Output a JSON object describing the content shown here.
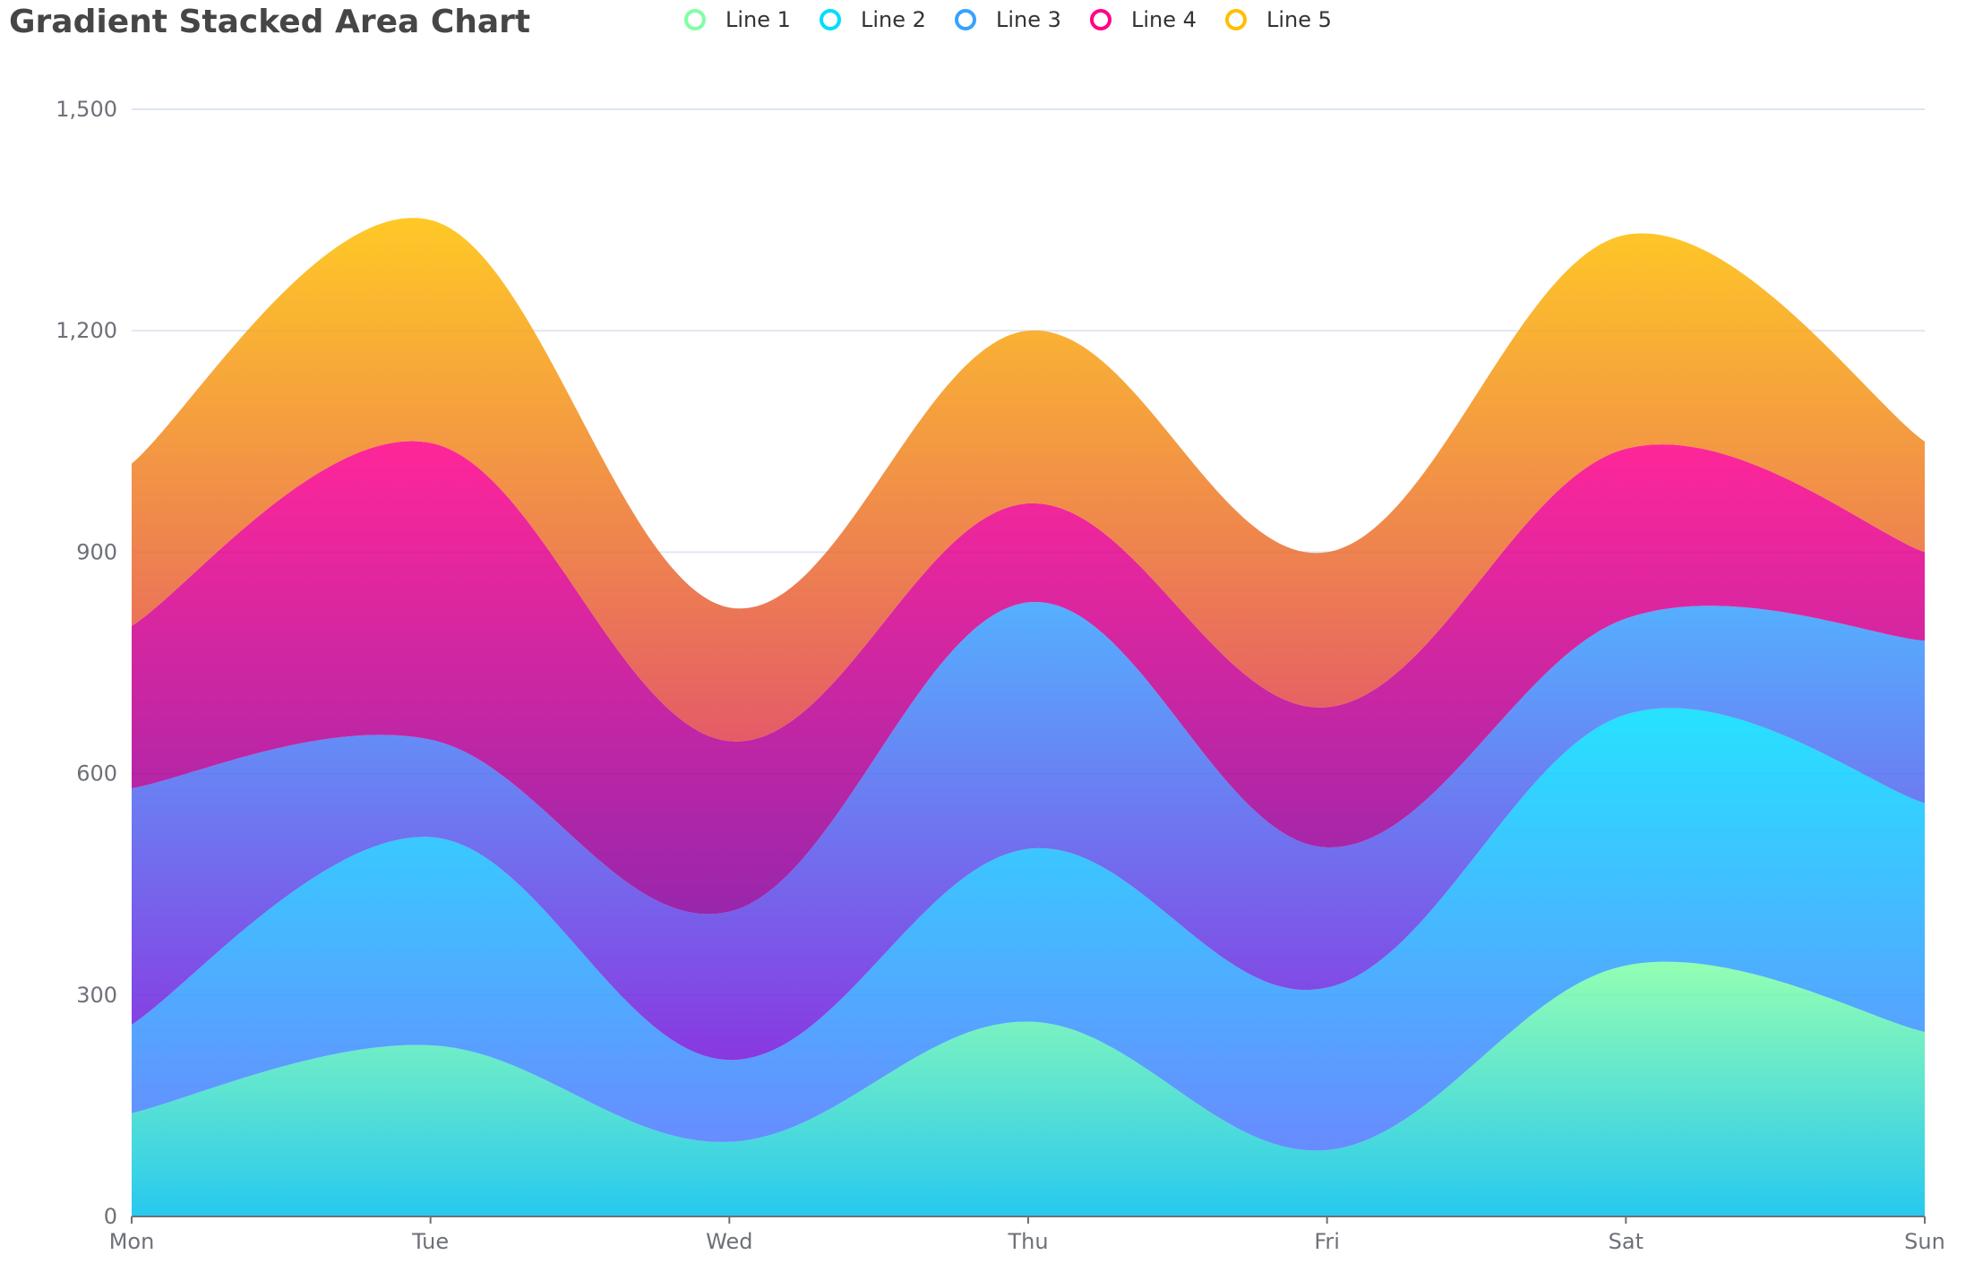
{
  "chart_data": {
    "type": "area",
    "title": "Gradient Stacked Area Chart",
    "stacked": true,
    "smooth": true,
    "categories": [
      "Mon",
      "Tue",
      "Wed",
      "Thu",
      "Fri",
      "Sat",
      "Sun"
    ],
    "ylim": [
      0,
      1500
    ],
    "yticks": [
      0,
      300,
      600,
      900,
      1200,
      1500
    ],
    "ytick_labels": [
      "0",
      "300",
      "600",
      "900",
      "1,200",
      "1,500"
    ],
    "grid": true,
    "legend_position": "top-center",
    "series": [
      {
        "name": "Line 1",
        "values": [
          140,
          232,
          101,
          264,
          90,
          340,
          250
        ],
        "color": "#80ffa5",
        "gradient": [
          "#80ffa5",
          "#01bfec"
        ]
      },
      {
        "name": "Line 2",
        "values": [
          120,
          282,
          111,
          234,
          220,
          340,
          310
        ],
        "color": "#00ddff",
        "gradient": [
          "#00ddff",
          "#4d77ff"
        ]
      },
      {
        "name": "Line 3",
        "values": [
          320,
          132,
          201,
          334,
          190,
          130,
          220
        ],
        "color": "#37a2ff",
        "gradient": [
          "#37a2ff",
          "#7415db"
        ]
      },
      {
        "name": "Line 4",
        "values": [
          220,
          402,
          231,
          134,
          190,
          230,
          120
        ],
        "color": "#ff0087",
        "gradient": [
          "#ff0087",
          "#87009d"
        ]
      },
      {
        "name": "Line 5",
        "values": [
          220,
          302,
          181,
          234,
          210,
          290,
          150
        ],
        "color": "#ffbf00",
        "gradient": [
          "#ffbf00",
          "#e03e4c"
        ]
      }
    ]
  }
}
